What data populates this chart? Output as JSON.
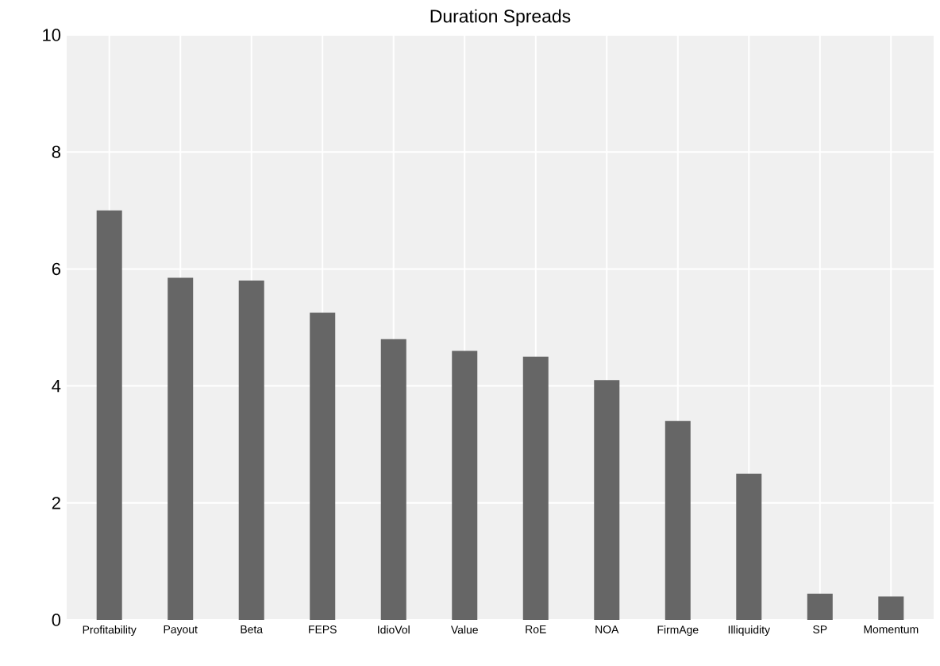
{
  "chart_data": {
    "type": "bar",
    "title": "Duration Spreads",
    "categories": [
      "Profitability",
      "Payout",
      "Beta",
      "FEPS",
      "IdioVol",
      "Value",
      "RoE",
      "NOA",
      "FirmAge",
      "Illiquidity",
      "SP",
      "Momentum"
    ],
    "values": [
      7.0,
      5.85,
      5.8,
      5.25,
      4.8,
      4.6,
      4.5,
      4.1,
      3.4,
      2.5,
      0.45,
      0.4
    ],
    "color": "#666666",
    "ylim": [
      0,
      10
    ],
    "yticks": [
      0,
      2,
      4,
      6,
      8,
      10
    ],
    "grid": true
  }
}
